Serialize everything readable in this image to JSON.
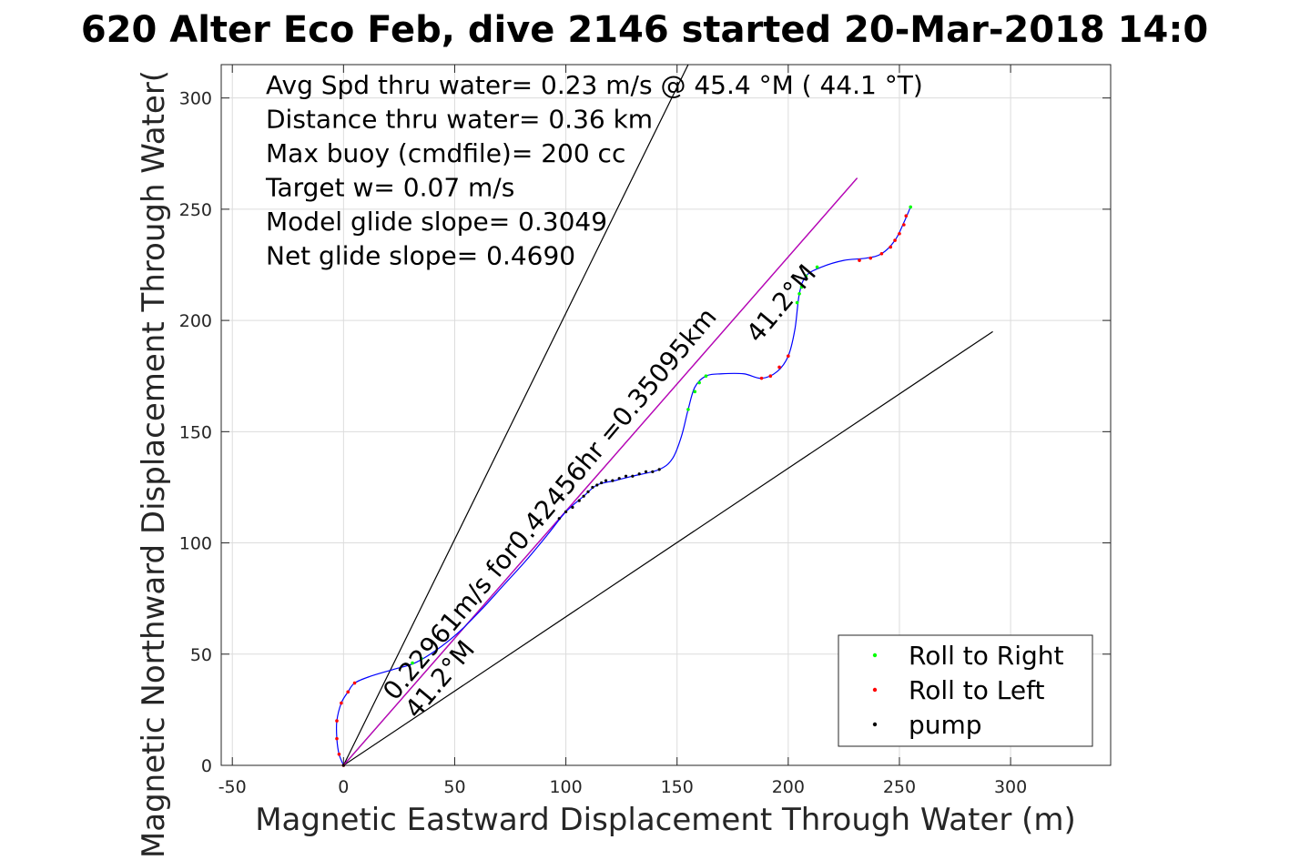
{
  "chart_data": {
    "type": "line",
    "title": "620 Alter Eco Feb, dive 2146 started 20-Mar-2018 14:0",
    "xlabel": "Magnetic Eastward Displacement Through Water (m)",
    "ylabel": "Magnetic Northward Displacement Through Water(",
    "xlim": [
      -55,
      345
    ],
    "ylim": [
      0,
      315
    ],
    "xticks": [
      -50,
      0,
      50,
      100,
      150,
      200,
      250,
      300
    ],
    "yticks": [
      0,
      50,
      100,
      150,
      200,
      250,
      300
    ],
    "xtick_labels": [
      "-50",
      "0",
      "50",
      "100",
      "150",
      "200",
      "250",
      "300"
    ],
    "ytick_labels": [
      "0",
      "50",
      "100",
      "150",
      "200",
      "250",
      "300"
    ],
    "grid": true,
    "annotations": [
      "Avg Spd thru water=  0.23 m/s @  45.4 °M ( 44.1 °T)",
      "Distance thru water=  0.36 km",
      "Max buoy (cmdfile)= 200 cc",
      "Target w= 0.07 m/s",
      "Model glide slope= 0.3049",
      "Net glide slope= 0.4690"
    ],
    "rotated_labels": {
      "upper_heading": "41.2°M",
      "speed_text": "0.22961m/s for0.42456hr =0.35095km",
      "lower_heading": "41.2°M"
    },
    "legend": {
      "position": "bottom-right",
      "entries": [
        {
          "label": "Roll to Right",
          "color": "#00ff00"
        },
        {
          "label": "Roll to Left",
          "color": "#ff0000"
        },
        {
          "label": "pump",
          "color": "#000000"
        }
      ]
    },
    "reference_lines": [
      {
        "color": "#000000",
        "points": [
          [
            0,
            0
          ],
          [
            155,
            315
          ]
        ]
      },
      {
        "color": "#000000",
        "points": [
          [
            0,
            0
          ],
          [
            292,
            195
          ]
        ]
      },
      {
        "color": "#000000",
        "points": [
          [
            0,
            0
          ],
          [
            231,
            264
          ]
        ]
      },
      {
        "color": "#c000c0",
        "points": [
          [
            0,
            0
          ],
          [
            231,
            264
          ]
        ]
      }
    ],
    "track": {
      "color": "#0000ff",
      "points": [
        [
          0,
          0
        ],
        [
          -2,
          5
        ],
        [
          -3,
          12
        ],
        [
          -3,
          20
        ],
        [
          -1,
          28
        ],
        [
          2,
          33
        ],
        [
          5,
          37
        ],
        [
          12,
          40
        ],
        [
          22,
          43
        ],
        [
          32,
          46
        ],
        [
          42,
          52
        ],
        [
          52,
          60
        ],
        [
          62,
          70
        ],
        [
          72,
          81
        ],
        [
          82,
          92
        ],
        [
          92,
          104
        ],
        [
          100,
          114
        ],
        [
          108,
          121
        ],
        [
          114,
          126
        ],
        [
          122,
          128
        ],
        [
          130,
          130
        ],
        [
          142,
          133
        ],
        [
          148,
          138
        ],
        [
          152,
          148
        ],
        [
          155,
          160
        ],
        [
          158,
          170
        ],
        [
          163,
          175
        ],
        [
          170,
          176
        ],
        [
          180,
          176
        ],
        [
          188,
          174
        ],
        [
          195,
          177
        ],
        [
          200,
          184
        ],
        [
          203,
          196
        ],
        [
          205,
          212
        ],
        [
          208,
          220
        ],
        [
          215,
          224
        ],
        [
          225,
          227
        ],
        [
          235,
          228
        ],
        [
          242,
          230
        ],
        [
          248,
          236
        ],
        [
          252,
          244
        ],
        [
          255,
          251
        ]
      ]
    },
    "roll_right_points": [
      [
        31,
        46
      ],
      [
        35,
        48
      ],
      [
        155,
        160
      ],
      [
        158,
        168
      ],
      [
        160,
        172
      ],
      [
        163,
        175
      ],
      [
        204,
        208
      ],
      [
        205,
        212
      ],
      [
        206,
        215
      ],
      [
        208,
        220
      ],
      [
        213,
        224
      ],
      [
        255,
        251
      ]
    ],
    "roll_left_points": [
      [
        0,
        0
      ],
      [
        -2,
        5
      ],
      [
        -3,
        12
      ],
      [
        -3,
        20
      ],
      [
        -1,
        28
      ],
      [
        2,
        33
      ],
      [
        5,
        37
      ],
      [
        188,
        174
      ],
      [
        192,
        175
      ],
      [
        196,
        179
      ],
      [
        200,
        184
      ],
      [
        232,
        227
      ],
      [
        237,
        228
      ],
      [
        242,
        230
      ],
      [
        246,
        233
      ],
      [
        248,
        236
      ],
      [
        250,
        239
      ],
      [
        252,
        243
      ],
      [
        253,
        247
      ]
    ],
    "pump_points": [
      [
        0,
        0
      ],
      [
        97,
        111
      ],
      [
        100,
        114
      ],
      [
        103,
        116
      ],
      [
        106,
        119
      ],
      [
        108,
        121
      ],
      [
        110,
        123
      ],
      [
        112,
        125
      ],
      [
        114,
        126
      ],
      [
        116,
        127
      ],
      [
        118,
        128
      ],
      [
        121,
        128
      ],
      [
        124,
        129
      ],
      [
        127,
        130
      ],
      [
        130,
        130
      ],
      [
        133,
        131
      ],
      [
        136,
        132
      ],
      [
        139,
        132
      ],
      [
        142,
        133
      ]
    ]
  }
}
